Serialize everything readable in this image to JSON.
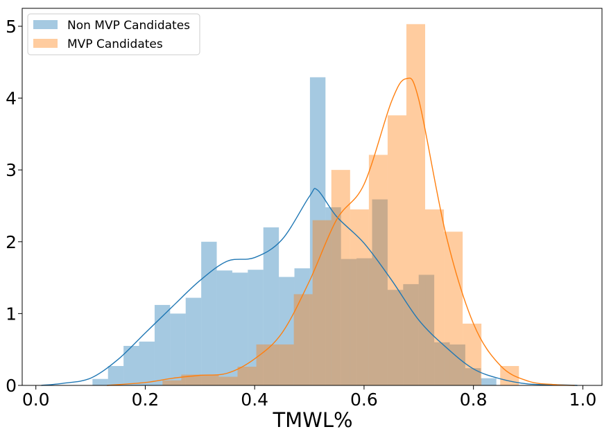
{
  "chart_data": {
    "type": "bar",
    "title": "",
    "xlabel": "TMWL%",
    "ylabel": "",
    "xlim": [
      -0.025,
      1.035
    ],
    "ylim": [
      0,
      5.25
    ],
    "x_ticks": [
      0.0,
      0.2,
      0.4,
      0.6,
      0.8,
      1.0
    ],
    "x_tick_labels": [
      "0.0",
      "0.2",
      "0.4",
      "0.6",
      "0.8",
      "1.0"
    ],
    "y_ticks": [
      0,
      1,
      2,
      3,
      4,
      5
    ],
    "y_tick_labels": [
      "0",
      "1",
      "2",
      "3",
      "4",
      "5"
    ],
    "legend_position": "top-left",
    "grid": false,
    "series": [
      {
        "name": "Non MVP Candidates",
        "color": "#1f77b4",
        "fill_color": "#a8c7e0",
        "bin_start": 0.1035,
        "bin_width": 0.0284,
        "histogram": [
          0.09,
          0.27,
          0.55,
          0.61,
          1.12,
          1.0,
          1.22,
          2.0,
          1.6,
          1.57,
          1.61,
          2.2,
          1.51,
          1.63,
          4.29,
          2.48,
          1.76,
          1.77,
          2.59,
          1.33,
          1.41,
          1.54,
          0.6,
          0.57,
          0.24,
          0.1
        ],
        "kde": {
          "x": [
            0.01,
            0.05,
            0.1,
            0.15,
            0.2,
            0.25,
            0.3,
            0.35,
            0.4,
            0.45,
            0.5,
            0.515,
            0.55,
            0.6,
            0.65,
            0.7,
            0.75,
            0.8,
            0.85,
            0.9,
            0.95,
            0.99
          ],
          "y": [
            0.0,
            0.03,
            0.1,
            0.36,
            0.73,
            1.1,
            1.46,
            1.73,
            1.78,
            2.03,
            2.63,
            2.72,
            2.35,
            1.98,
            1.47,
            0.91,
            0.53,
            0.23,
            0.09,
            0.02,
            0.01,
            0.0
          ]
        }
      },
      {
        "name": "MVP Candidates",
        "color": "#ff7f0e",
        "fill_color": "#fec899",
        "bin_start": 0.2315,
        "bin_width": 0.0343,
        "histogram": [
          0.07,
          0.15,
          0.15,
          0.12,
          0.26,
          0.57,
          0.57,
          1.27,
          2.3,
          3.0,
          2.45,
          3.21,
          3.76,
          5.03,
          2.45,
          2.14,
          0.86,
          0.0,
          0.27
        ],
        "kde": {
          "x": [
            0.13,
            0.2,
            0.25,
            0.3,
            0.35,
            0.4,
            0.45,
            0.5,
            0.55,
            0.6,
            0.65,
            0.677,
            0.7,
            0.75,
            0.8,
            0.85,
            0.9,
            0.95,
            0.985
          ],
          "y": [
            0.0,
            0.04,
            0.1,
            0.14,
            0.17,
            0.37,
            0.73,
            1.45,
            2.31,
            2.8,
            3.95,
            4.27,
            3.98,
            2.09,
            0.86,
            0.27,
            0.06,
            0.01,
            0.0
          ]
        }
      }
    ]
  }
}
